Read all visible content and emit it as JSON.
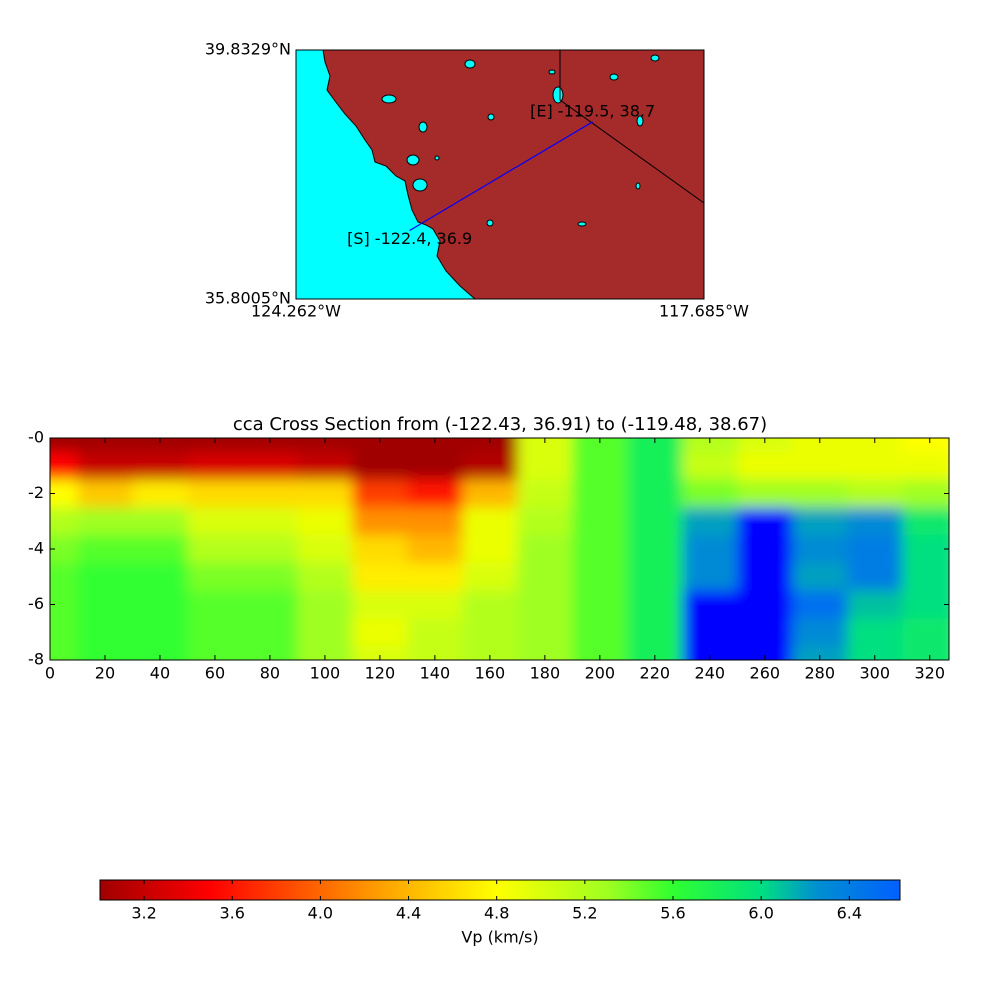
{
  "chart_data": [
    {
      "type": "map",
      "xlim": [
        -124.262,
        -117.685
      ],
      "ylim": [
        35.8005,
        39.8329
      ],
      "xticks": [
        {
          "value": -124.262,
          "label": "124.262°W"
        },
        {
          "value": -117.685,
          "label": "117.685°W"
        }
      ],
      "yticks": [
        {
          "value": 35.8005,
          "label": "35.8005°N"
        },
        {
          "value": 39.8329,
          "label": "39.8329°N"
        }
      ],
      "land_color": "#a52a2a",
      "water_color": "#00ffff",
      "line": {
        "x": [
          -122.43,
          -119.48
        ],
        "y": [
          36.91,
          38.67
        ],
        "color": "#0000ff"
      },
      "annotations": [
        "[S] -122.4, 36.9",
        "[E] -119.5, 38.7"
      ]
    },
    {
      "type": "heatmap",
      "title": "cca Cross Section from (-122.43, 36.91) to (-119.48, 38.67)",
      "xlim": [
        0,
        327
      ],
      "ylim": [
        -8,
        0
      ],
      "xticks": [
        0,
        20,
        40,
        60,
        80,
        100,
        120,
        140,
        160,
        180,
        200,
        220,
        240,
        260,
        280,
        300,
        320
      ],
      "yticks": [
        {
          "value": 0,
          "label": "-0"
        },
        -2,
        -4,
        -6,
        -8
      ],
      "x": [
        0,
        20,
        40,
        60,
        80,
        100,
        120,
        140,
        160,
        180,
        200,
        220,
        240,
        260,
        280,
        300,
        320
      ],
      "y": [
        0,
        -1,
        -2,
        -3,
        -4,
        -5,
        -6,
        -7,
        -8
      ],
      "z": [
        [
          3.0,
          3.0,
          3.0,
          3.0,
          3.0,
          3.0,
          3.0,
          3.0,
          3.0,
          5.0,
          5.5,
          5.8,
          5.2,
          5.0,
          4.9,
          4.9,
          4.8
        ],
        [
          3.5,
          3.2,
          3.2,
          3.3,
          3.3,
          3.2,
          3.0,
          3.0,
          3.1,
          5.0,
          5.5,
          5.8,
          5.1,
          4.9,
          4.9,
          4.9,
          4.9
        ],
        [
          4.8,
          4.5,
          4.7,
          4.6,
          4.6,
          4.6,
          3.8,
          3.6,
          4.4,
          5.1,
          5.5,
          5.8,
          5.4,
          5.3,
          5.3,
          5.2,
          5.3
        ],
        [
          5.2,
          5.3,
          5.3,
          5.0,
          5.0,
          4.9,
          4.2,
          4.2,
          4.9,
          5.2,
          5.5,
          5.8,
          6.2,
          6.7,
          6.2,
          6.3,
          5.9
        ],
        [
          5.4,
          5.5,
          5.5,
          5.2,
          5.2,
          5.0,
          4.6,
          4.4,
          4.9,
          5.3,
          5.5,
          5.8,
          6.3,
          6.8,
          6.3,
          6.4,
          6.0
        ],
        [
          5.5,
          5.6,
          5.6,
          5.4,
          5.4,
          5.2,
          4.7,
          4.7,
          5.0,
          5.3,
          5.5,
          5.8,
          6.3,
          6.8,
          6.2,
          6.4,
          6.0
        ],
        [
          5.5,
          5.6,
          5.6,
          5.5,
          5.5,
          5.3,
          5.0,
          5.0,
          5.2,
          5.3,
          5.5,
          5.8,
          6.7,
          6.8,
          6.5,
          6.1,
          6.0
        ],
        [
          5.5,
          5.6,
          5.6,
          5.5,
          5.5,
          5.3,
          4.9,
          5.1,
          5.2,
          5.3,
          5.5,
          5.8,
          6.7,
          6.7,
          6.3,
          6.0,
          5.9
        ],
        [
          5.5,
          5.6,
          5.6,
          5.5,
          5.5,
          5.3,
          5.0,
          5.1,
          5.2,
          5.3,
          5.5,
          5.8,
          6.7,
          6.7,
          6.2,
          6.0,
          5.9
        ]
      ],
      "clim": [
        3.0,
        6.63
      ],
      "colormap": [
        {
          "value": 3.0,
          "color": "#a00000"
        },
        {
          "value": 3.5,
          "color": "#ff0000"
        },
        {
          "value": 4.3,
          "color": "#ffa500"
        },
        {
          "value": 4.8,
          "color": "#ffff00"
        },
        {
          "value": 5.3,
          "color": "#a0ff20"
        },
        {
          "value": 5.6,
          "color": "#30ff30"
        },
        {
          "value": 6.0,
          "color": "#00e080"
        },
        {
          "value": 6.25,
          "color": "#0090d0"
        },
        {
          "value": 6.63,
          "color": "#0060ff"
        }
      ],
      "over_color": "#0000ff"
    },
    {
      "type": "colorbar",
      "label": "Vp (km/s)",
      "xlim": [
        3.0,
        6.63
      ],
      "xticks": [
        3.2,
        3.6,
        {
          "value": 4.0,
          "label": "4.0"
        },
        4.4,
        4.8,
        5.2,
        5.6,
        {
          "value": 6.0,
          "label": "6.0"
        },
        6.4
      ]
    }
  ]
}
